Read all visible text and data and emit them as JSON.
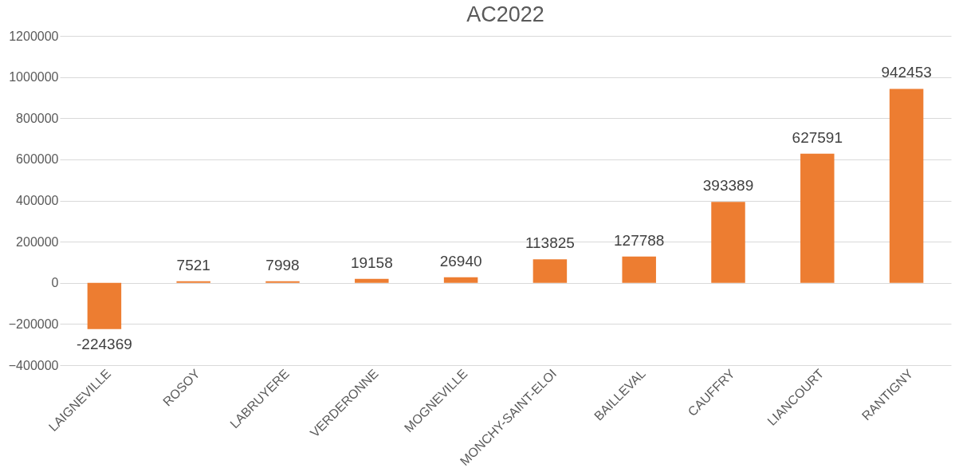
{
  "chart_data": {
    "type": "bar",
    "title": "AC2022",
    "categories": [
      "LAIGNEVILLE",
      "ROSOY",
      "LABRUYERE",
      "VERDERONNE",
      "MOGNEVILLE",
      "MONCHY-SAINT-ELOI",
      "BAILLEVAL",
      "CAUFFRY",
      "LIANCOURT",
      "RANTIGNY"
    ],
    "values": [
      -224369,
      7521,
      7998,
      19158,
      26940,
      113825,
      127788,
      393389,
      627591,
      942453
    ],
    "color": "#ed7d31",
    "ylim": [
      -400000,
      1200000
    ],
    "yticks": [
      -400000,
      -200000,
      0,
      200000,
      400000,
      600000,
      800000,
      1000000,
      1200000
    ],
    "grid": "y",
    "data_labels": true
  }
}
